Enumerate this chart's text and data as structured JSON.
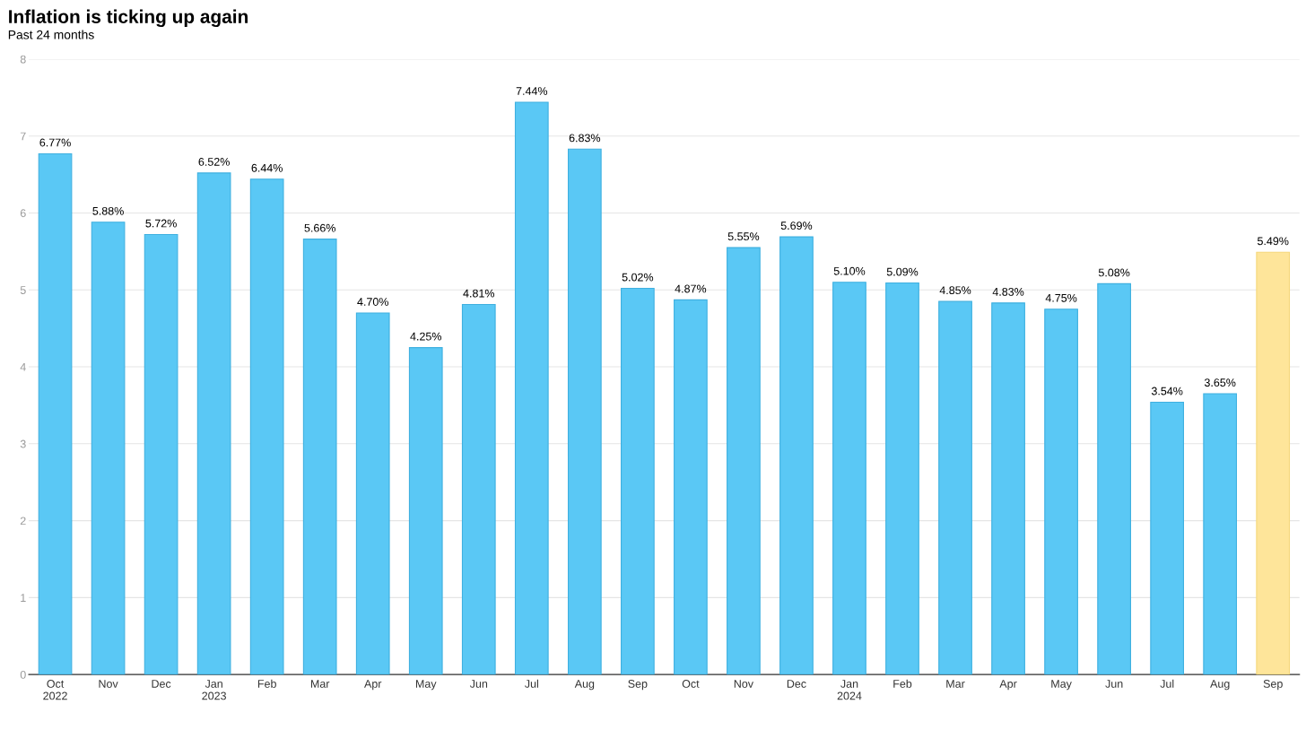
{
  "chart_data": {
    "type": "bar",
    "title": "Inflation is ticking up again",
    "subtitle": "Past 24 months",
    "categories": [
      "Oct\n2022",
      "Nov",
      "Dec",
      "Jan\n2023",
      "Feb",
      "Mar",
      "Apr",
      "May",
      "Jun",
      "Jul",
      "Aug",
      "Sep",
      "Oct",
      "Nov",
      "Dec",
      "Jan\n2024",
      "Feb",
      "Mar",
      "Apr",
      "May",
      "Jun",
      "Jul",
      "Aug",
      "Sep"
    ],
    "values": [
      6.77,
      5.88,
      5.72,
      6.52,
      6.44,
      5.66,
      4.7,
      4.25,
      4.81,
      7.44,
      6.83,
      5.02,
      4.87,
      5.55,
      5.69,
      5.1,
      5.09,
      4.85,
      4.83,
      4.75,
      5.08,
      3.54,
      3.65,
      5.49
    ],
    "value_labels": [
      "6.77%",
      "5.88%",
      "5.72%",
      "6.52%",
      "6.44%",
      "5.66%",
      "4.70%",
      "4.25%",
      "4.81%",
      "7.44%",
      "6.83%",
      "5.02%",
      "4.87%",
      "5.55%",
      "5.69%",
      "5.10%",
      "5.09%",
      "4.85%",
      "4.83%",
      "4.75%",
      "5.08%",
      "3.54%",
      "3.65%",
      "5.49%"
    ],
    "colors": [
      "#5ac8f5",
      "#5ac8f5",
      "#5ac8f5",
      "#5ac8f5",
      "#5ac8f5",
      "#5ac8f5",
      "#5ac8f5",
      "#5ac8f5",
      "#5ac8f5",
      "#5ac8f5",
      "#5ac8f5",
      "#5ac8f5",
      "#5ac8f5",
      "#5ac8f5",
      "#5ac8f5",
      "#5ac8f5",
      "#5ac8f5",
      "#5ac8f5",
      "#5ac8f5",
      "#5ac8f5",
      "#5ac8f5",
      "#5ac8f5",
      "#5ac8f5",
      "#fee59a"
    ],
    "ylim": [
      0,
      8
    ],
    "yticks": [
      0,
      1,
      2,
      3,
      4,
      5,
      6,
      7,
      8
    ],
    "grid": "y",
    "legend": false
  }
}
